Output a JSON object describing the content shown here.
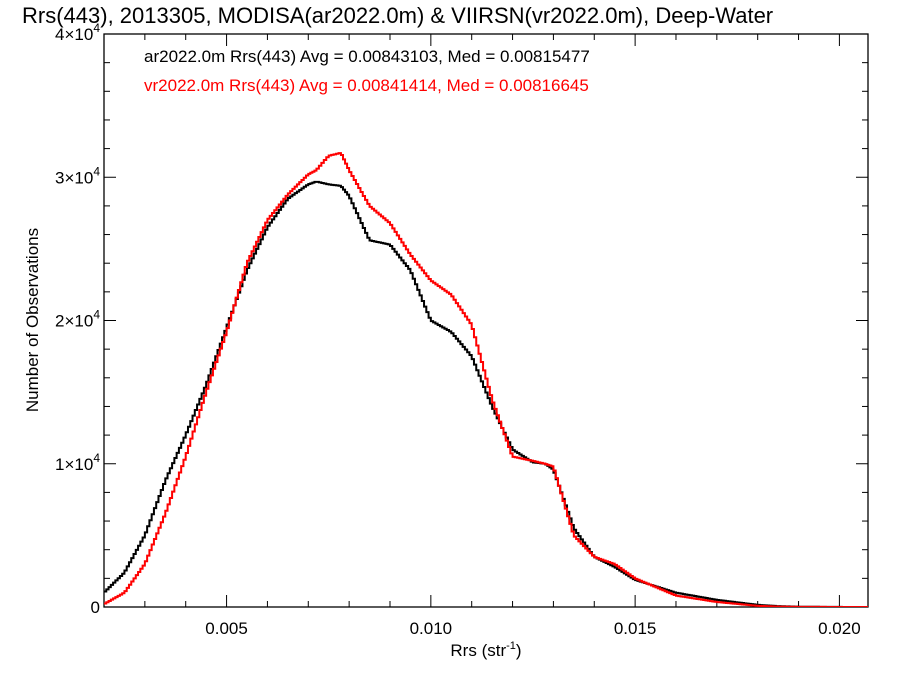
{
  "chart_data": {
    "type": "line",
    "title": "Rrs(443), 2013305, MODISA(ar2022.0m) & VIIRSN(vr2022.0m), Deep-Water",
    "xlabel": "Rrs (str",
    "xlabel_sup": "-1",
    "xlabel_end": ")",
    "ylabel": "Number of Observations",
    "xlim": [
      0.002,
      0.0207
    ],
    "ylim": [
      0,
      40000
    ],
    "x_ticks": [
      {
        "value": 0.005,
        "label": "0.005"
      },
      {
        "value": 0.01,
        "label": "0.010"
      },
      {
        "value": 0.015,
        "label": "0.015"
      },
      {
        "value": 0.02,
        "label": "0.020"
      }
    ],
    "y_ticks": [
      {
        "value": 0,
        "mant": "0",
        "exp": ""
      },
      {
        "value": 10000,
        "mant": "1×10",
        "exp": "4"
      },
      {
        "value": 20000,
        "mant": "2×10",
        "exp": "4"
      },
      {
        "value": 30000,
        "mant": "3×10",
        "exp": "4"
      },
      {
        "value": 40000,
        "mant": "4×10",
        "exp": "4"
      }
    ],
    "legend_position": "top-left",
    "grid": false,
    "series": [
      {
        "name": "ar2022.0m Rrs(443) Avg = 0.00843103, Med = 0.00815477",
        "color": "#000000",
        "x": [
          0.002,
          0.0025,
          0.003,
          0.0035,
          0.004,
          0.0045,
          0.005,
          0.0055,
          0.006,
          0.0065,
          0.007,
          0.0072,
          0.0075,
          0.0078,
          0.008,
          0.0085,
          0.009,
          0.0095,
          0.01,
          0.0105,
          0.011,
          0.0115,
          0.012,
          0.0125,
          0.0128,
          0.013,
          0.0135,
          0.014,
          0.0145,
          0.015,
          0.016,
          0.017,
          0.018,
          0.0185,
          0.019,
          0.02,
          0.0207
        ],
        "y": [
          1000,
          2400,
          5000,
          8800,
          12000,
          15500,
          19500,
          23500,
          26500,
          28500,
          29500,
          29700,
          29500,
          29400,
          28700,
          25600,
          25300,
          23500,
          20000,
          19200,
          17500,
          14000,
          11000,
          10100,
          10000,
          9600,
          5500,
          3500,
          2800,
          1900,
          1000,
          500,
          150,
          60,
          20,
          5,
          0
        ]
      },
      {
        "name": "vr2022.0m Rrs(443) Avg = 0.00841414, Med = 0.00816645",
        "color": "#ff0000",
        "x": [
          0.002,
          0.0025,
          0.003,
          0.0035,
          0.004,
          0.0045,
          0.005,
          0.0055,
          0.006,
          0.0065,
          0.007,
          0.0072,
          0.0075,
          0.0078,
          0.008,
          0.0085,
          0.009,
          0.0095,
          0.01,
          0.0105,
          0.011,
          0.0115,
          0.012,
          0.0125,
          0.0128,
          0.013,
          0.0135,
          0.014,
          0.0145,
          0.015,
          0.016,
          0.017,
          0.018,
          0.0185,
          0.019,
          0.02,
          0.0207
        ],
        "y": [
          200,
          1000,
          3000,
          6500,
          10500,
          15000,
          19200,
          24000,
          27000,
          28800,
          30200,
          30500,
          31500,
          31700,
          30500,
          28000,
          26800,
          24600,
          22800,
          21800,
          19700,
          14500,
          10500,
          10200,
          10000,
          9800,
          5000,
          3500,
          3000,
          2000,
          800,
          350,
          80,
          30,
          10,
          2,
          0
        ]
      }
    ]
  }
}
